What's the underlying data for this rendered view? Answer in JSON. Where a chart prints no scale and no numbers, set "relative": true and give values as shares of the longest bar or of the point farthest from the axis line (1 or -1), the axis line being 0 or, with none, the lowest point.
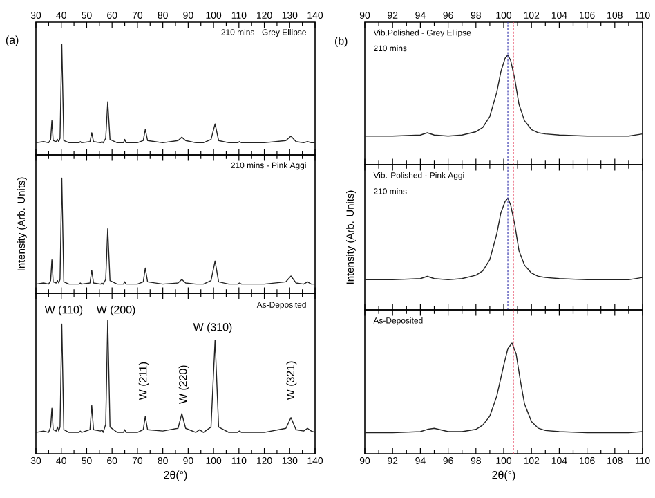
{
  "chart_data": [
    {
      "type": "line",
      "relative": true,
      "title": "(a)",
      "color": "#222222",
      "xlim": [
        30,
        140
      ],
      "xticks": [
        30,
        40,
        50,
        60,
        70,
        80,
        90,
        100,
        110,
        120,
        130,
        140
      ],
      "tick_labels": "x",
      "annotations": [
        "210 mins - Grey Ellipse"
      ],
      "x": [
        30,
        33,
        35,
        35.8,
        36.3,
        36.8,
        38,
        38.5,
        39,
        39.5,
        40.2,
        41,
        43,
        47,
        47.5,
        48,
        51.3,
        52,
        52.7,
        55.5,
        56,
        56.5,
        57.5,
        58.3,
        59.2,
        62,
        64.5,
        65,
        65.5,
        70,
        72.3,
        73.1,
        74,
        80,
        86,
        87.5,
        89,
        93,
        94.5,
        96,
        99,
        100.6,
        102,
        106,
        109.5,
        110.2,
        111,
        120,
        128.5,
        130.5,
        132.5,
        135.5,
        137,
        138.5,
        140
      ],
      "values": [
        0.11,
        0.12,
        0.11,
        0.14,
        0.31,
        0.13,
        0.12,
        0.14,
        0.12,
        0.15,
        1,
        0.13,
        0.11,
        0.11,
        0.12,
        0.11,
        0.12,
        0.2,
        0.12,
        0.11,
        0.12,
        0.11,
        0.15,
        0.48,
        0.14,
        0.11,
        0.11,
        0.14,
        0.11,
        0.11,
        0.13,
        0.23,
        0.13,
        0.11,
        0.13,
        0.16,
        0.13,
        0.11,
        0.11,
        0.11,
        0.14,
        0.28,
        0.13,
        0.11,
        0.11,
        0.12,
        0.11,
        0.11,
        0.13,
        0.17,
        0.12,
        0.11,
        0.12,
        0.11,
        0.11
      ]
    },
    {
      "type": "line",
      "relative": true,
      "ylabel": "Intensity (Arb. Units)",
      "color": "#222222",
      "xlim": [
        30,
        140
      ],
      "xticks": [
        30,
        40,
        50,
        60,
        70,
        80,
        90,
        100,
        110,
        120,
        130,
        140
      ],
      "tick_labels": false,
      "annotations": [
        "210 mins - Pink Aggi"
      ],
      "x": [
        30,
        33,
        35,
        35.8,
        36.3,
        36.8,
        38,
        38.5,
        39,
        39.5,
        40.2,
        41,
        43,
        47,
        47.5,
        48,
        51.3,
        52,
        52.7,
        55.5,
        56,
        56.5,
        57.5,
        58.3,
        59.2,
        62,
        64.5,
        65,
        65.5,
        70,
        72.3,
        73.1,
        74,
        80,
        86,
        87.5,
        89,
        93,
        94.5,
        96,
        99,
        100.6,
        102,
        106,
        109.5,
        110.2,
        111,
        120,
        128.5,
        130.5,
        132.5,
        135.5,
        137,
        138.5,
        140
      ],
      "values": [
        0.08,
        0.09,
        0.08,
        0.11,
        0.29,
        0.1,
        0.09,
        0.11,
        0.09,
        0.12,
        1,
        0.1,
        0.08,
        0.08,
        0.09,
        0.08,
        0.09,
        0.2,
        0.09,
        0.08,
        0.09,
        0.08,
        0.12,
        0.56,
        0.11,
        0.08,
        0.08,
        0.1,
        0.08,
        0.08,
        0.1,
        0.22,
        0.1,
        0.08,
        0.09,
        0.12,
        0.09,
        0.08,
        0.08,
        0.08,
        0.11,
        0.28,
        0.1,
        0.08,
        0.08,
        0.09,
        0.08,
        0.08,
        0.1,
        0.15,
        0.09,
        0.08,
        0.1,
        0.08,
        0.08
      ]
    },
    {
      "type": "line",
      "relative": true,
      "xlabel": "2θ(°)",
      "color": "#222222",
      "xlim": [
        30,
        140
      ],
      "xticks": [
        30,
        40,
        50,
        60,
        70,
        80,
        90,
        100,
        110,
        120,
        130,
        140
      ],
      "tick_labels": "x",
      "annotations": [
        "As-Deposited",
        "W (110)",
        "W (200)",
        "W (211)",
        "W (220)",
        "W (310)",
        "W (321)"
      ],
      "x": [
        30,
        33,
        35,
        35.8,
        36.3,
        36.8,
        38,
        38.5,
        39,
        39.5,
        40.2,
        41,
        43,
        47,
        47.5,
        48,
        51.3,
        52,
        52.7,
        55.5,
        56,
        56.5,
        57.5,
        58.3,
        59.2,
        62,
        64.5,
        65,
        65.5,
        70,
        72.3,
        73.1,
        74,
        80,
        86,
        87.5,
        89,
        93,
        94.5,
        96,
        99,
        100.6,
        102,
        106,
        109.5,
        110.2,
        111,
        120,
        128.5,
        130.5,
        132.5,
        135.5,
        137,
        138.5,
        140
      ],
      "values": [
        0.16,
        0.17,
        0.16,
        0.2,
        0.34,
        0.18,
        0.17,
        0.2,
        0.17,
        0.2,
        0.97,
        0.18,
        0.16,
        0.16,
        0.17,
        0.16,
        0.18,
        0.36,
        0.18,
        0.17,
        0.18,
        0.16,
        0.22,
        1,
        0.2,
        0.16,
        0.16,
        0.18,
        0.16,
        0.16,
        0.18,
        0.28,
        0.18,
        0.17,
        0.19,
        0.3,
        0.19,
        0.16,
        0.18,
        0.16,
        0.2,
        0.85,
        0.2,
        0.16,
        0.16,
        0.17,
        0.16,
        0.16,
        0.19,
        0.27,
        0.18,
        0.17,
        0.19,
        0.17,
        0.16
      ]
    },
    {
      "type": "line",
      "relative": true,
      "title": "(b)",
      "color": "#222222",
      "xlim": [
        90,
        110
      ],
      "xticks": [
        90,
        92,
        94,
        96,
        98,
        100,
        102,
        104,
        106,
        108,
        110
      ],
      "tick_labels": "x",
      "annotations": [
        "Vib.Polished - Grey Ellipse",
        "210 mins"
      ],
      "ref_lines": [
        {
          "axis": "x",
          "value": 100.3,
          "color": "#3b3bb0",
          "line_style": "dashed"
        },
        {
          "axis": "x",
          "value": 100.7,
          "color": "#e8506a",
          "line_style": "dashed"
        }
      ],
      "x": [
        90,
        92,
        94,
        94.5,
        95,
        96,
        97,
        98,
        98.5,
        99,
        99.5,
        99.8,
        100.1,
        100.3,
        100.5,
        100.8,
        101.1,
        101.5,
        102,
        102.5,
        103,
        104,
        106,
        108,
        109,
        110
      ],
      "values": [
        0.26,
        0.26,
        0.27,
        0.29,
        0.27,
        0.26,
        0.27,
        0.3,
        0.34,
        0.44,
        0.66,
        0.85,
        0.97,
        1,
        0.95,
        0.78,
        0.55,
        0.4,
        0.32,
        0.29,
        0.28,
        0.27,
        0.26,
        0.26,
        0.26,
        0.28
      ]
    },
    {
      "type": "line",
      "relative": true,
      "ylabel": "Intensity (Arb. Units)",
      "color": "#222222",
      "xlim": [
        90,
        110
      ],
      "xticks": [
        90,
        92,
        94,
        96,
        98,
        100,
        102,
        104,
        106,
        108,
        110
      ],
      "tick_labels": false,
      "annotations": [
        "Vib. Polished - Pink Aggi",
        "210 mins"
      ],
      "ref_lines": [
        {
          "axis": "x",
          "value": 100.3,
          "color": "#3b3bb0",
          "line_style": "dashed"
        },
        {
          "axis": "x",
          "value": 100.7,
          "color": "#e8506a",
          "line_style": "dashed"
        }
      ],
      "x": [
        90,
        92,
        94,
        94.5,
        95,
        96,
        97,
        98,
        98.5,
        99,
        99.5,
        99.8,
        100.1,
        100.3,
        100.5,
        100.8,
        101.1,
        101.5,
        102,
        102.5,
        103,
        104,
        106,
        108,
        109,
        110
      ],
      "values": [
        0.27,
        0.27,
        0.28,
        0.3,
        0.28,
        0.27,
        0.28,
        0.31,
        0.35,
        0.45,
        0.68,
        0.87,
        0.97,
        1,
        0.94,
        0.76,
        0.53,
        0.4,
        0.33,
        0.3,
        0.29,
        0.28,
        0.27,
        0.27,
        0.27,
        0.29
      ]
    },
    {
      "type": "line",
      "relative": true,
      "xlabel": "2θ(°)",
      "color": "#222222",
      "xlim": [
        90,
        110
      ],
      "xticks": [
        90,
        92,
        94,
        96,
        98,
        100,
        102,
        104,
        106,
        108,
        110
      ],
      "tick_labels": "x",
      "annotations": [
        "As-Deposited"
      ],
      "ref_lines": [
        {
          "axis": "x",
          "value": 100.7,
          "color": "#e8506a",
          "line_style": "dashed"
        }
      ],
      "x": [
        90,
        92,
        94,
        94.5,
        95,
        96,
        97,
        98,
        98.5,
        99,
        99.5,
        100,
        100.3,
        100.6,
        100.9,
        101.2,
        101.5,
        102,
        102.5,
        103,
        104,
        106,
        108,
        109,
        110
      ],
      "values": [
        0.19,
        0.19,
        0.2,
        0.22,
        0.23,
        0.2,
        0.2,
        0.22,
        0.26,
        0.34,
        0.52,
        0.8,
        0.95,
        1,
        0.9,
        0.66,
        0.45,
        0.29,
        0.23,
        0.21,
        0.2,
        0.19,
        0.19,
        0.19,
        0.2
      ]
    }
  ]
}
